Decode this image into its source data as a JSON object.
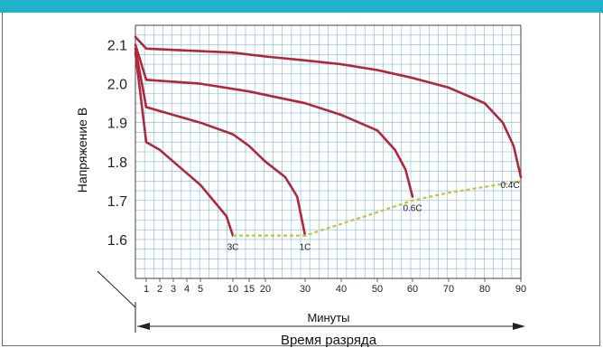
{
  "colors": {
    "header": "#1fb3c9",
    "grid": "#7fb6e6",
    "curve": "#b0273a",
    "cutoff": "#c8c23a",
    "axis": "#444444"
  },
  "chart_data": {
    "type": "line",
    "ylabel": "Напряжение В",
    "xlabel_primary": "Минуты",
    "xlabel_secondary": "Время разряда",
    "ylim": [
      1.5,
      2.15
    ],
    "y_ticks": [
      1.6,
      1.7,
      1.8,
      1.9,
      2.0,
      2.1
    ],
    "y_tick_labels": [
      "1.6",
      "1.7",
      "1.8",
      "1.9",
      "2.0",
      "2.1"
    ],
    "x_ticks": [
      1,
      2,
      3,
      4,
      5,
      10,
      15,
      20,
      30,
      40,
      50,
      60,
      70,
      80,
      90
    ],
    "x_tick_labels": [
      "1",
      "2",
      "3",
      "4",
      "5",
      "10",
      "15",
      "20",
      "30",
      "40",
      "50",
      "60",
      "70",
      "80",
      "90"
    ],
    "grid": true,
    "series": [
      {
        "name": "3C",
        "x": [
          0,
          1,
          2,
          3,
          4,
          5,
          7,
          9,
          10
        ],
        "y": [
          2.08,
          1.85,
          1.83,
          1.8,
          1.77,
          1.74,
          1.7,
          1.66,
          1.61
        ]
      },
      {
        "name": "1C",
        "x": [
          0,
          1,
          3,
          5,
          10,
          15,
          20,
          25,
          28,
          30
        ],
        "y": [
          2.09,
          1.94,
          1.92,
          1.9,
          1.87,
          1.84,
          1.8,
          1.76,
          1.71,
          1.61
        ]
      },
      {
        "name": "0.6C",
        "x": [
          0,
          1,
          5,
          15,
          30,
          40,
          50,
          55,
          58,
          60
        ],
        "y": [
          2.1,
          2.01,
          2.0,
          1.98,
          1.95,
          1.92,
          1.88,
          1.83,
          1.78,
          1.71
        ]
      },
      {
        "name": "0.4C",
        "x": [
          0,
          1,
          10,
          20,
          30,
          40,
          50,
          60,
          70,
          75,
          80,
          85,
          88,
          90
        ],
        "y": [
          2.12,
          2.09,
          2.08,
          2.07,
          2.06,
          2.05,
          2.035,
          2.015,
          1.99,
          1.97,
          1.95,
          1.9,
          1.84,
          1.76
        ]
      }
    ],
    "cutoff_line": {
      "x": [
        10,
        30,
        40,
        50,
        60,
        70,
        80,
        90
      ],
      "y": [
        1.61,
        1.61,
        1.64,
        1.67,
        1.7,
        1.72,
        1.735,
        1.75
      ]
    }
  }
}
